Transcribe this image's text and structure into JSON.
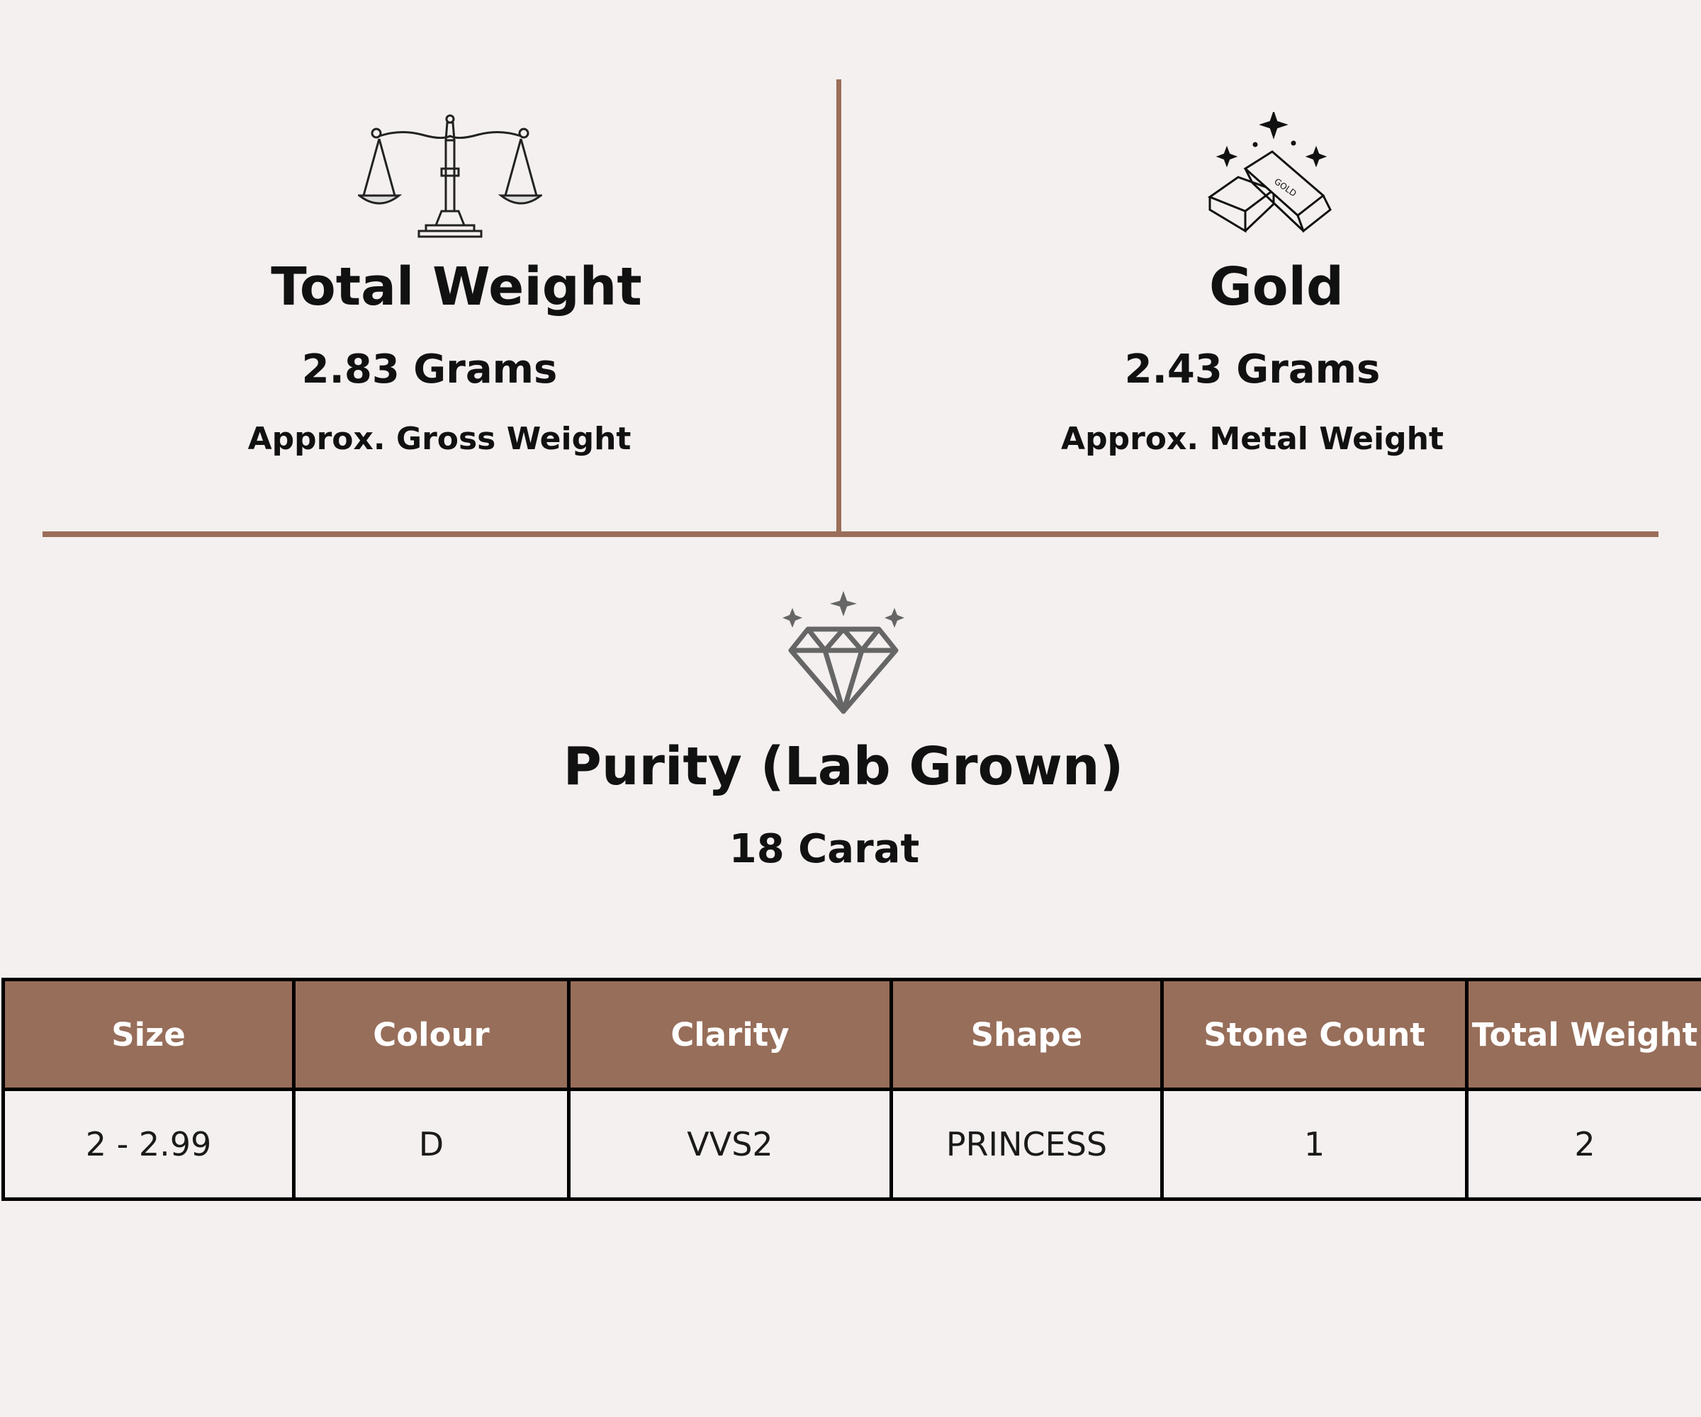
{
  "weight_panel": {
    "title": "Total Weight",
    "value": "2.83 Grams",
    "caption": "Approx. Gross Weight",
    "icon": "balance-scale-icon"
  },
  "gold_panel": {
    "title": "Gold",
    "value": "2.43 Grams",
    "caption": "Approx. Metal Weight",
    "icon": "gold-bars-icon",
    "bar_label": "GOLD"
  },
  "purity_panel": {
    "title": "Purity (Lab Grown)",
    "value": "18 Carat",
    "icon": "diamond-icon"
  },
  "stone_table": {
    "headers": [
      "Size",
      "Colour",
      "Clarity",
      "Shape",
      "Stone Count",
      "Total Weight"
    ],
    "rows": [
      [
        "2 - 2.99",
        "D",
        "VVS2",
        "PRINCESS",
        "1",
        "2"
      ]
    ]
  },
  "colors": {
    "background": "#f4f0ef",
    "accent_brown": "#976e5a",
    "divider": "#9a6e5a",
    "text": "#111111"
  }
}
